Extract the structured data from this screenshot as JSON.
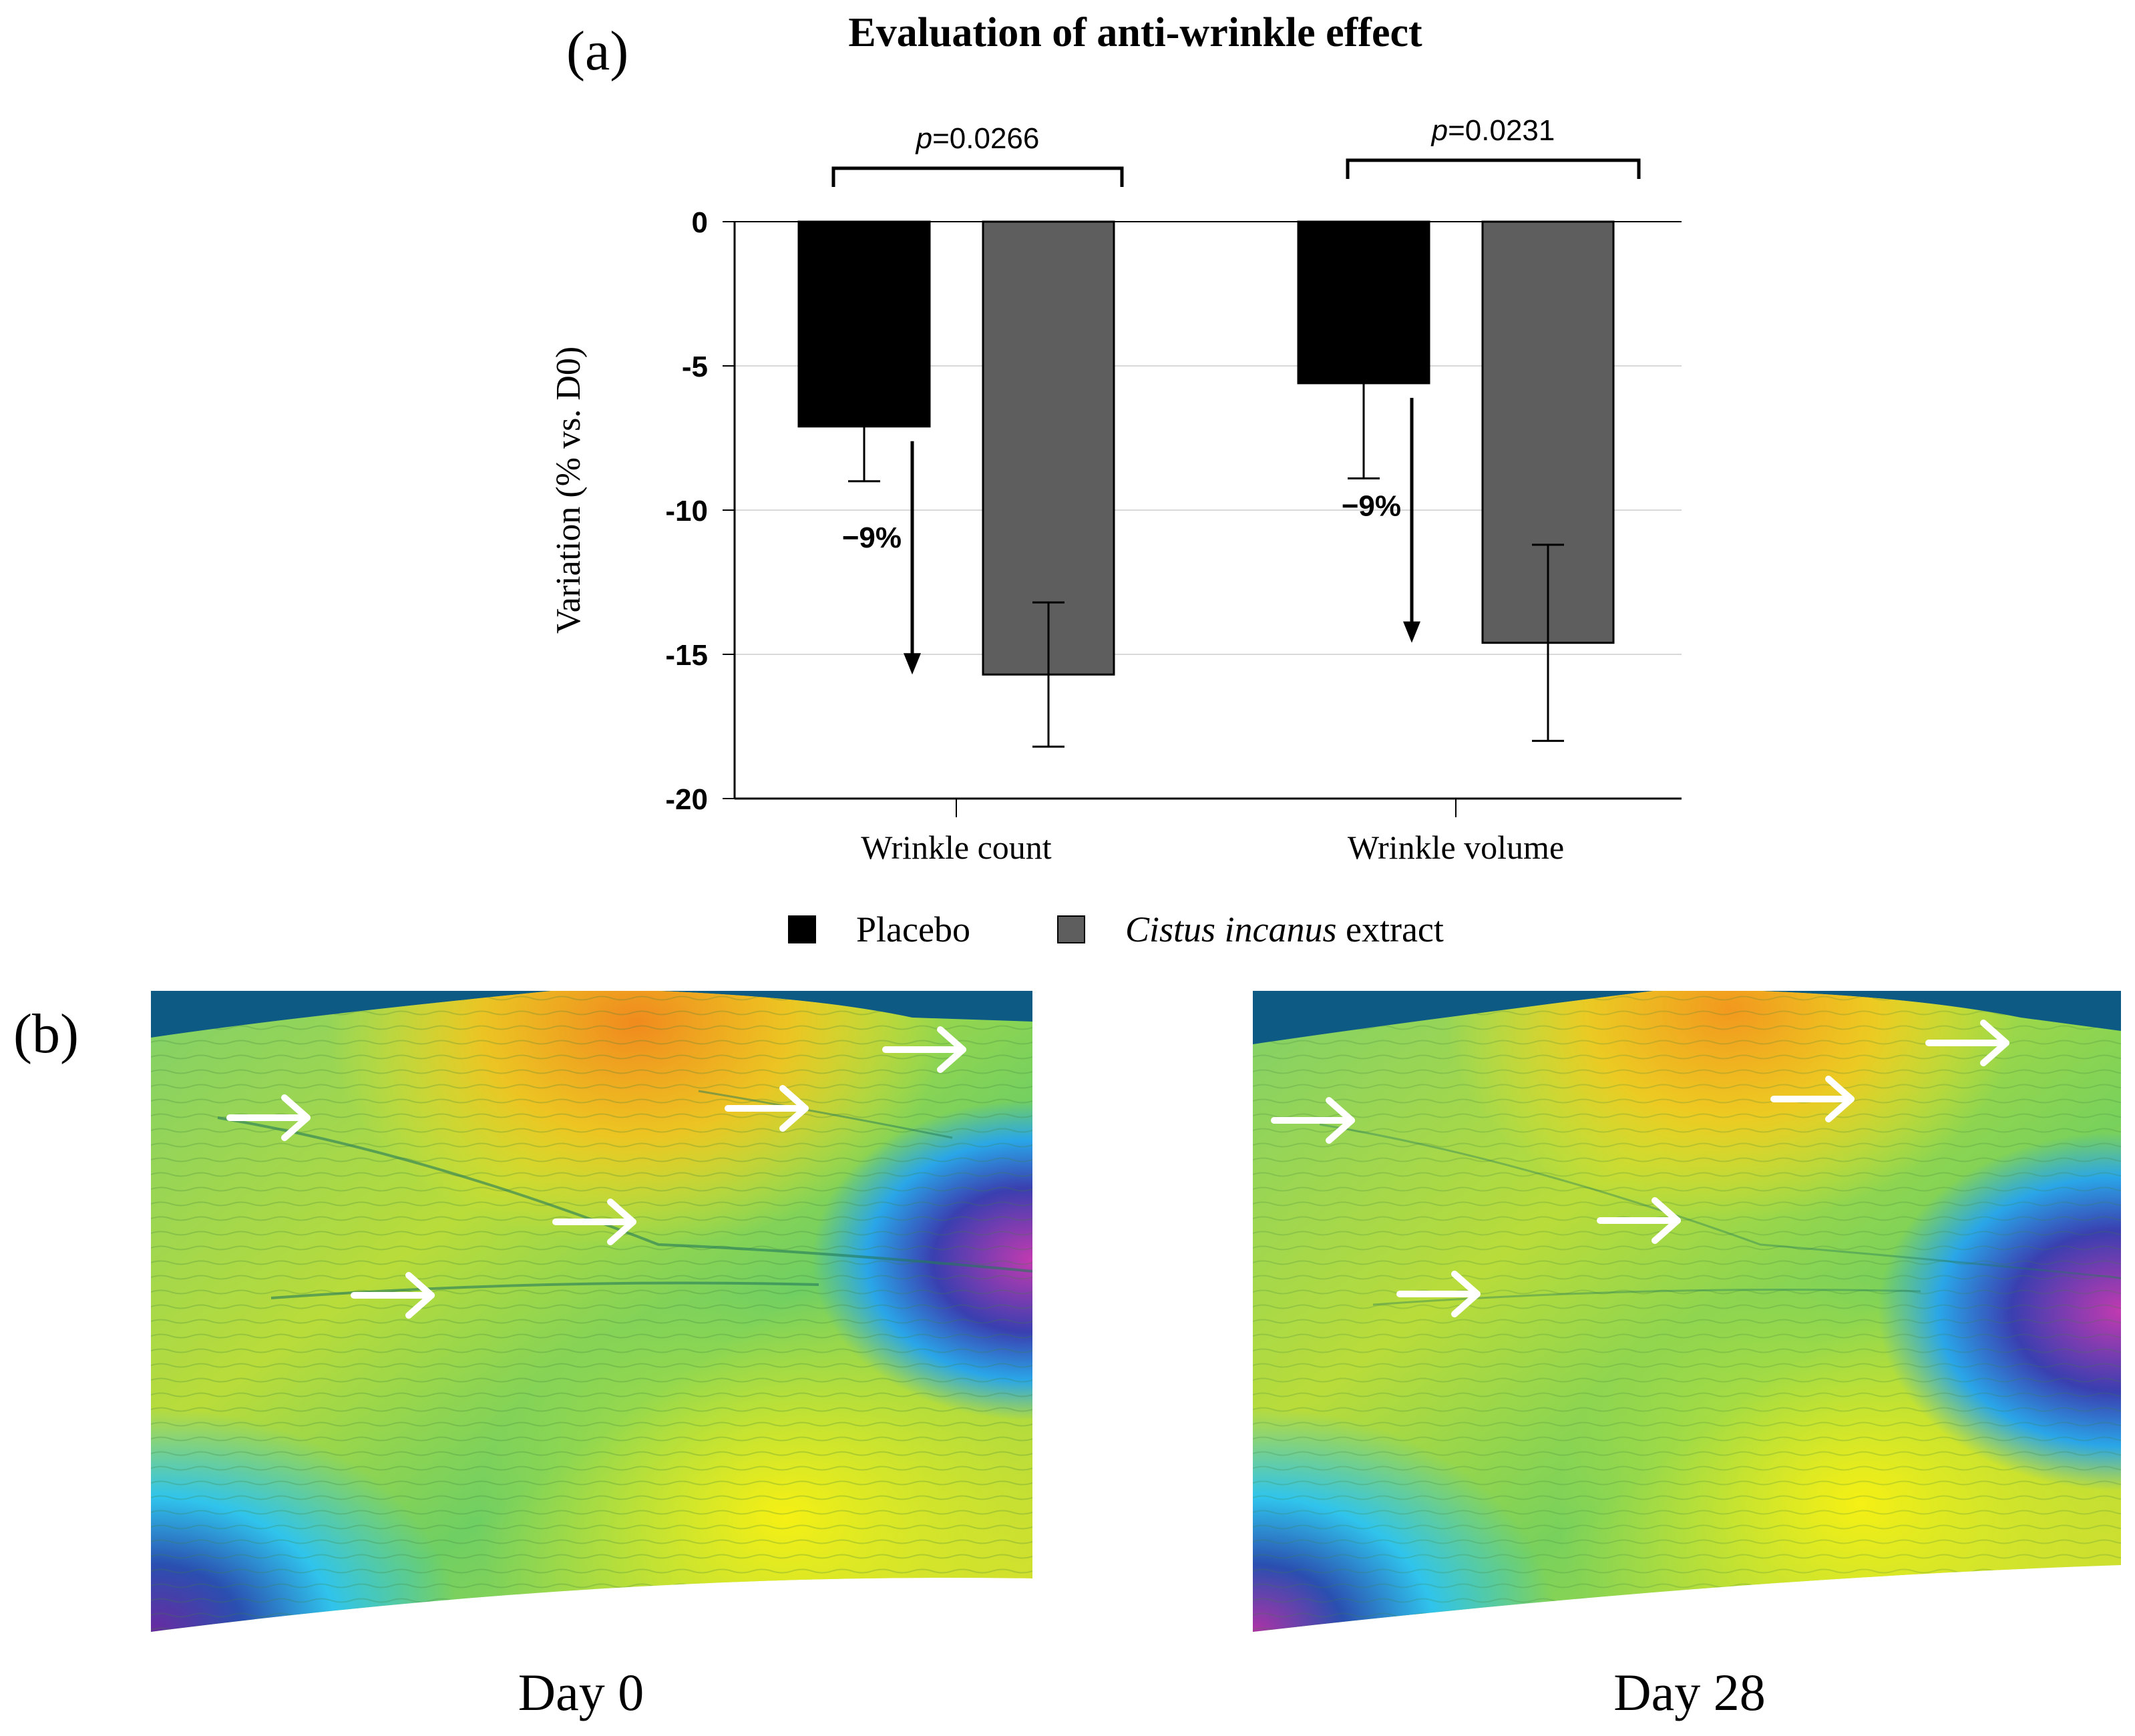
{
  "panel_labels": {
    "a": "(a)",
    "b": "(b)"
  },
  "chart_data": {
    "type": "bar",
    "title": "Evaluation of anti-wrinkle effect",
    "ylabel": "Variation (% vs. D0)",
    "xlabel": "",
    "ylim": [
      -20,
      0
    ],
    "yticks": [
      "0",
      "-5",
      "-10",
      "-15",
      "-20"
    ],
    "categories": [
      "Wrinkle count",
      "Wrinkle volume"
    ],
    "series": [
      {
        "name": "Placebo",
        "color": "#000000",
        "values": [
          -7.1,
          -5.6
        ],
        "error": [
          1.9,
          3.3
        ]
      },
      {
        "name": "Cistus incanus extract",
        "color": "#5e5e5e",
        "values": [
          -15.7,
          -14.6
        ],
        "error": [
          2.5,
          3.4
        ]
      }
    ],
    "significance": [
      {
        "category": "Wrinkle count",
        "p_prefix": "p",
        "p_value": "=0.0266",
        "difference": "−9%"
      },
      {
        "category": "Wrinkle volume",
        "p_prefix": "p",
        "p_value": "=0.0231",
        "difference": "−9%"
      }
    ],
    "legend": {
      "placebo": "Placebo",
      "extract_italic": "Cistus incanus",
      "extract_rest": " extract"
    }
  },
  "captions": {
    "day0": "Day 0",
    "day28": "Day 28"
  }
}
